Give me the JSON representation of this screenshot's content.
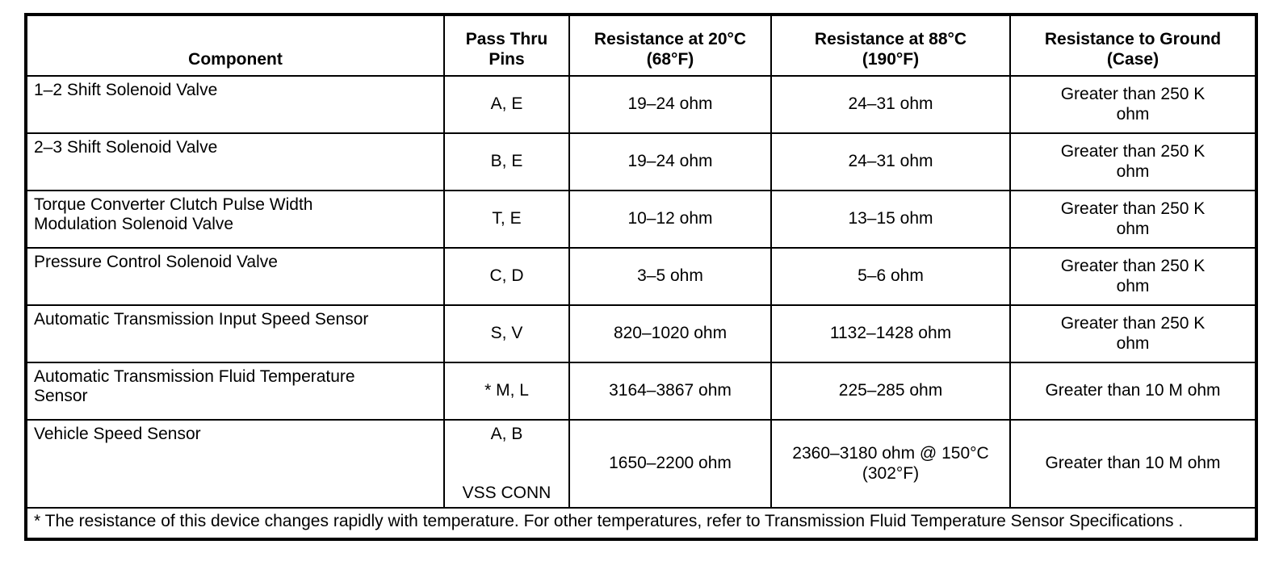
{
  "page": {
    "background": "#ffffff",
    "border_color": "#000000",
    "text_color": "#000000"
  },
  "table": {
    "headers": {
      "component": "Component",
      "pins": "Pass Thru\nPins",
      "r20": "Resistance at 20°C\n(68°F)",
      "r88": "Resistance at 88°C\n(190°F)",
      "ground": "Resistance to Ground\n(Case)"
    },
    "rows": [
      {
        "component": "1–2 Shift Solenoid Valve",
        "pins": "A, E",
        "r20": "19–24 ohm",
        "r88": "24–31 ohm",
        "ground": "Greater than 250 K\nohm"
      },
      {
        "component": "2–3 Shift Solenoid Valve",
        "pins": "B, E",
        "r20": "19–24 ohm",
        "r88": "24–31 ohm",
        "ground": "Greater than 250 K\nohm"
      },
      {
        "component": "Torque Converter Clutch Pulse Width\nModulation Solenoid Valve",
        "pins": "T, E",
        "r20": "10–12 ohm",
        "r88": "13–15 ohm",
        "ground": "Greater than 250 K\nohm"
      },
      {
        "component": "Pressure Control Solenoid Valve",
        "pins": "C, D",
        "r20": "3–5 ohm",
        "r88": "5–6 ohm",
        "ground": "Greater than 250 K\nohm"
      },
      {
        "component": "Automatic Transmission Input Speed Sensor",
        "pins": "S, V",
        "r20": "820–1020 ohm",
        "r88": "1132–1428 ohm",
        "ground": "Greater than 250 K\nohm"
      },
      {
        "component": "Automatic Transmission Fluid Temperature\nSensor",
        "pins": "* M, L",
        "r20": "3164–3867 ohm",
        "r88": "225–285 ohm",
        "ground": "Greater than 10 M ohm"
      },
      {
        "component": "Vehicle Speed Sensor",
        "pins": "A, B\n\n\nVSS CONN",
        "r20": "1650–2200 ohm",
        "r88": "2360–3180 ohm @ 150°C\n(302°F)",
        "ground": "Greater than 10 M ohm"
      }
    ],
    "footnote": "* The resistance of this device changes rapidly with temperature. For other temperatures, refer to Transmission Fluid Temperature Sensor Specifications ."
  }
}
